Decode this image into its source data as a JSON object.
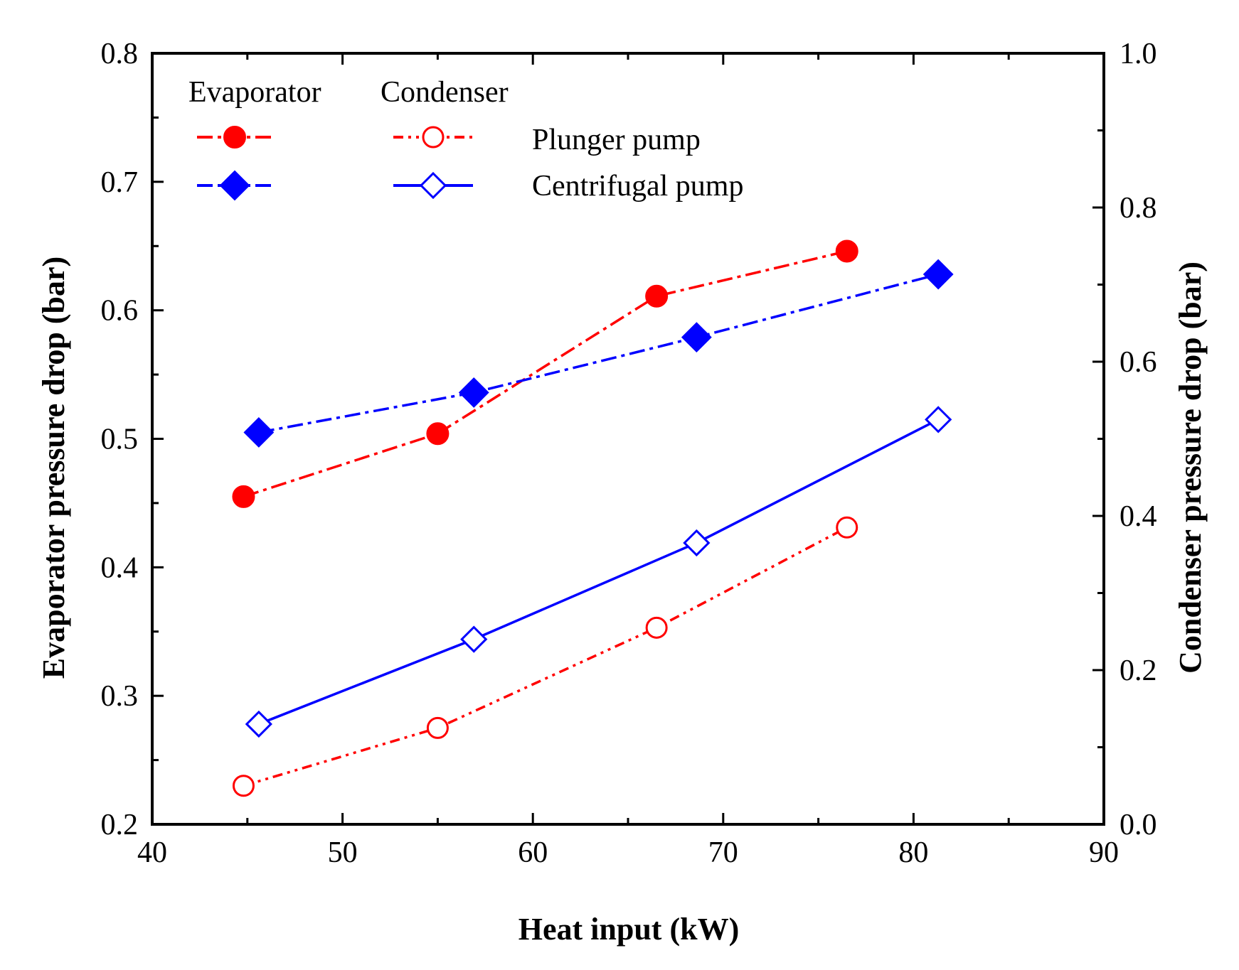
{
  "chart_data": {
    "type": "line",
    "title": "",
    "xlabel": "Heat input (kW)",
    "ylabel_left": "Evaporator pressure drop (bar)",
    "ylabel_right": "Condenser pressure drop (bar)",
    "xlim": [
      40,
      90
    ],
    "xticks": [
      "40",
      "50",
      "60",
      "70",
      "80",
      "90"
    ],
    "ylim_left": [
      0.2,
      0.8
    ],
    "yticks_left": [
      "0.2",
      "0.3",
      "0.4",
      "0.5",
      "0.6",
      "0.7",
      "0.8"
    ],
    "ylim_right": [
      0.0,
      1.0
    ],
    "yticks_right": [
      "0.0",
      "0.2",
      "0.4",
      "0.6",
      "0.8",
      "1.0"
    ],
    "grid": false,
    "legend": {
      "header_evaporator": "Evaporator",
      "header_condenser": "Condenser",
      "row1_label": "Plunger pump",
      "row2_label": "Centrifugal pump",
      "placement": "top-left"
    },
    "series": [
      {
        "name": "Evaporator - Plunger pump",
        "axis": "left",
        "color": "#ff0000",
        "marker": "filled-circle",
        "line": "dash-dot",
        "x": [
          44.8,
          55.0,
          66.5,
          76.5
        ],
        "y": [
          0.455,
          0.504,
          0.611,
          0.646
        ]
      },
      {
        "name": "Evaporator - Centrifugal pump",
        "axis": "left",
        "color": "#0000ff",
        "marker": "filled-diamond",
        "line": "dash-dot",
        "x": [
          45.6,
          56.9,
          68.6,
          81.3
        ],
        "y": [
          0.505,
          0.536,
          0.579,
          0.628
        ]
      },
      {
        "name": "Condenser - Plunger pump",
        "axis": "right",
        "color": "#ff0000",
        "marker": "open-circle",
        "line": "dash-dot-dot",
        "x": [
          44.8,
          55.0,
          66.5,
          76.5
        ],
        "y": [
          0.05,
          0.125,
          0.255,
          0.385
        ]
      },
      {
        "name": "Condenser - Centrifugal pump",
        "axis": "right",
        "color": "#0000ff",
        "marker": "open-diamond",
        "line": "solid",
        "x": [
          45.6,
          56.9,
          68.6,
          81.3
        ],
        "y": [
          0.13,
          0.24,
          0.365,
          0.525
        ]
      }
    ]
  }
}
